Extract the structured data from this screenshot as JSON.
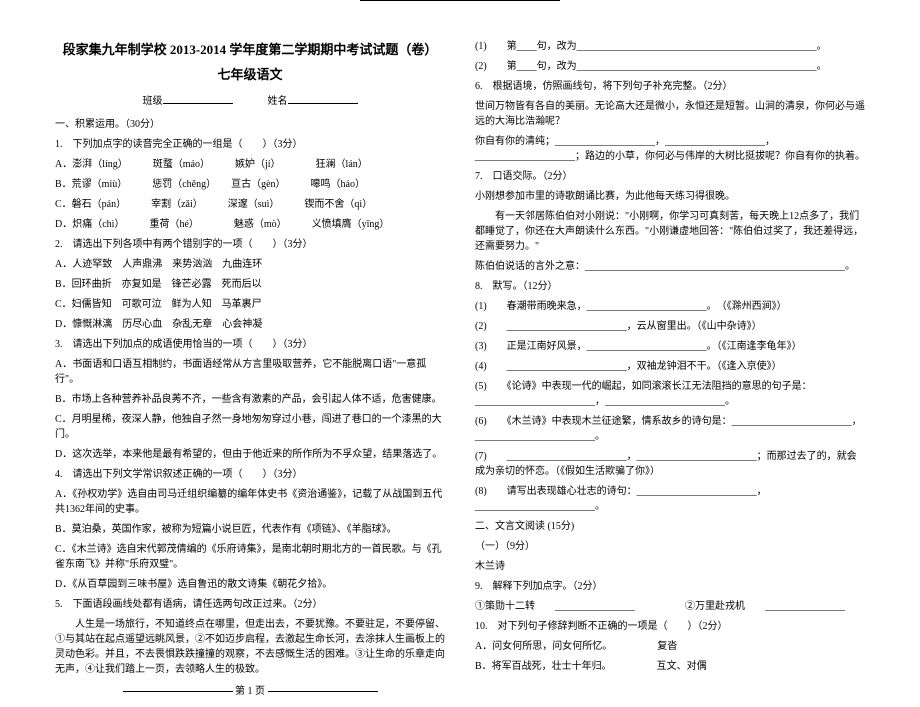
{
  "header": {
    "title": "段家集九年制学校 2013-2014 学年度第二学期期中考试试题（卷）",
    "subtitle": "七年级语文",
    "class_label": "班级",
    "name_label": "姓名"
  },
  "left": {
    "sec1": "一、积累运用。（30分）",
    "q1": "1.　下列加点字的读音完全正确的一组是（　　）（3分）",
    "q1a": "A．澎湃（líng）　　　斑蝥（máo）　　　嫉妒（jí）　　　　狂澜（lán）",
    "q1b": "B．荒谬（miù）　　　惩罚（chěng）　　亘古（gèn）　　　嗥鸣（háo）",
    "q1c": "C．磐石（pán）　　　宰割（zǎi）　　　深邃（suì）　　　锲而不舍（qì）",
    "q1d": "D．炽痛（chì）　　　重荷（hé）　　　　魅惑（mò）　　　义愤填膺（yīng）",
    "q2": "2.　请选出下列各项中有两个错别字的一项（　　）（3分）",
    "q2a": "A．人迹罕致　人声鼎沸　来势汹汹　九曲连环",
    "q2b": "B．回环曲折　亦复如是　锋芒必露　死而后以",
    "q2c": "C．妇儒皆知　可歌可泣　鲜为人知　马革裹尸",
    "q2d": "D．慷慨淋漓　历尽心血　杂乱无章　心会神凝",
    "q3": "3.　请选出下列加点的成语使用恰当的一项（　　）（3分）",
    "q3a": "A．书面语和口语互相制约，书面语经常从方言里吸取营养，它不能脱离口语\"一意孤行\"。",
    "q3b": "B．市场上各种营养补品良莠不齐，一些含有激素的产品，会引起人体不适，危害健康。",
    "q3c": "C．月明星稀，夜深人静，他独自孑然一身地匆匆穿过小巷，闯进了巷口的一个漆黑的大门。",
    "q3d": "D．这次选举，本来他是最有希望的，但由于他近来的所作所为不孚众望，结果落选了。",
    "q4": "4.　请选出下列文学常识叙述正确的一项（　　）（3分）",
    "q4a": "A．《孙权劝学》选自由司马迁组织编纂的编年体史书《资治通鉴》，记载了从战国到五代共1362年间的史事。",
    "q4b": "B．莫泊桑，英国作家，被称为短篇小说巨匠，代表作有《项链》、《羊脂球》。",
    "q4c": "C．《木兰诗》选自宋代郭茂倩编的《乐府诗集》，是南北朝时期北方的一首民歌。与《孔雀东南飞》并称\"乐府双璧\"。",
    "q4d": "D．《从百草园到三味书屋》选自鲁迅的散文诗集《朝花夕拾》。",
    "q5": "5.　下面语段画线处都有语病，请任选两句改正过来。（2分）",
    "q5p": "　　人生是一场旅行，不知道终点在哪里，但走出去，不要犹豫。不要驻足，不要停留、①与其站在起点遥望远眺风景，②不如迈步启程，去激起生命长河，去涂抹人生画板上的灵动色彩。并且，不去畏惧跌跌撞撞的观察，不去感慨生活的困难。③让生命的乐章走向无声，④让我们踏上一页，去领略人生的极致。",
    "footer_label": "第 1 页"
  },
  "right": {
    "r1": "(1)　　第____句，改为________________________________________________。",
    "r2": "(2)　　第____句，改为________________________________________________。",
    "q6": "6.　根据语境，仿照画线句，将下列句子补充完整。（2分）",
    "q6p1": "世间万物皆有各自的美丽。无论高大还是微小，永恒还是短暂。山涧的清泉，你何必与遥远的大海比浩瀚呢？",
    "q6p2": "你自有你的清纯；____________________，____________________，____________________；路边的小草，你何必与伟岸的大树比挺拔呢？你自有你的执着。",
    "q7": "7.　口语交际。（2分）",
    "q7p1": "小刚想参加市里的诗歌朗诵比赛，为此他每天练习得很晚。",
    "q7p2": "　　有一天邻居陈伯伯对小刚说：\"小刚啊，你学习可真刻苦，每天晚上12点多了，我们都睡觉了，你还在大声朗读什么东西。\"小刚谦虚地回答：\"陈伯伯过奖了，我还差得远，还需要努力。\"",
    "q7p3": "陈伯伯说话的言外之意：____________________________________________________。",
    "q8": "8.　默写。（12分）",
    "q8_1": "(1)　　春潮带雨晚来急，________________________。　（《滁州西涧》）",
    "q8_2": "(2)　　________________________，云从窗里出。（《山中杂诗》）",
    "q8_3": "(3)　　正是江南好风景，________________________。（《江南逢李龟年》）",
    "q8_4": "(4)　　________________________，双袖龙钟泪不干。（《逢入京使》）",
    "q8_5": "(5)　　《论诗》中表现一代的崛起，如同滚滚长江无法阻挡的意思的句子是：________________________，________________________。",
    "q8_6": "(6)　　《木兰诗》中表现木兰征途繁，情系故乡的诗句是：________________________，________________________。",
    "q8_7": "(7)　　________________________，________________________；而那过去了的，就会成为亲切的怀恋。（《假如生活欺骗了你》）",
    "q8_8": "(8)　　请写出表现雄心壮志的诗句：________________________，________________________。",
    "sec2": "二、文言文阅读 (15分)",
    "sec2_1": "（一）（9分）",
    "sec2_2": "木兰诗",
    "q9": "9.　解释下列加点字。（2分）",
    "q9_1": "①策勋十二转　　________________　　　　　②万里赴戎机　　________________",
    "q10": "10.　对下列句子修辞判断不正确的一项是（　　）（2分）",
    "q10a": "A．问女何所思，问女何所忆。　　　　　复沓",
    "q10b": "B．将军百战死，壮士十年归。　　　　　互文、对偶"
  }
}
